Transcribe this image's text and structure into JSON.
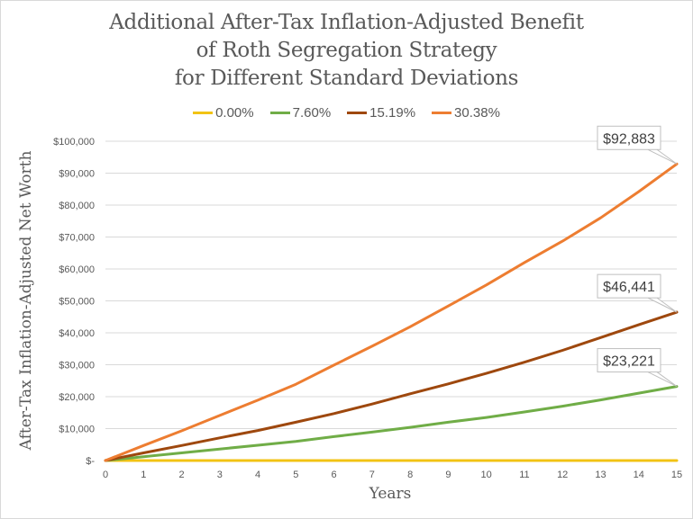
{
  "chart_data": {
    "type": "line",
    "title_lines": [
      "Additional After-Tax Inflation-Adjusted Benefit",
      "of Roth Segregation Strategy",
      "for Different Standard Deviations"
    ],
    "xlabel": "Years",
    "ylabel": "After-Tax Inflation-Adjusted Net Worth",
    "x": [
      0,
      1,
      2,
      3,
      4,
      5,
      6,
      7,
      8,
      9,
      10,
      11,
      12,
      13,
      14,
      15
    ],
    "xlim": [
      0,
      15
    ],
    "ylim": [
      0,
      100000
    ],
    "y_ticks": [
      0,
      10000,
      20000,
      30000,
      40000,
      50000,
      60000,
      70000,
      80000,
      90000,
      100000
    ],
    "y_tick_labels": [
      "$-",
      "$10,000",
      "$20,000",
      "$30,000",
      "$40,000",
      "$50,000",
      "$60,000",
      "$70,000",
      "$80,000",
      "$90,000",
      "$100,000"
    ],
    "x_tick_labels": [
      "0",
      "1",
      "2",
      "3",
      "4",
      "5",
      "6",
      "7",
      "8",
      "9",
      "10",
      "11",
      "12",
      "13",
      "14",
      "15"
    ],
    "grid": "horizontal",
    "legend_position": "top",
    "series": [
      {
        "name": "0.00%",
        "color": "#f2c314",
        "values": [
          0,
          0,
          0,
          0,
          0,
          0,
          0,
          0,
          0,
          0,
          0,
          0,
          0,
          0,
          0,
          0
        ]
      },
      {
        "name": "7.60%",
        "color": "#70ad47",
        "values": [
          0,
          1200,
          2400,
          3600,
          4800,
          6000,
          7500,
          8900,
          10400,
          12000,
          13500,
          15200,
          17000,
          19000,
          21100,
          23221
        ],
        "end_label": "$23,221"
      },
      {
        "name": "15.19%",
        "color": "#9e480e",
        "values": [
          0,
          2400,
          4700,
          7100,
          9400,
          12000,
          14700,
          17700,
          20900,
          24000,
          27300,
          30800,
          34500,
          38500,
          42500,
          46441
        ],
        "end_label": "$46,441"
      },
      {
        "name": "30.38%",
        "color": "#ed7d31",
        "values": [
          0,
          4700,
          9300,
          14100,
          18900,
          23900,
          29900,
          35800,
          41900,
          48400,
          55000,
          62000,
          68700,
          76000,
          84200,
          92883
        ],
        "end_label": "$92,883"
      }
    ]
  }
}
